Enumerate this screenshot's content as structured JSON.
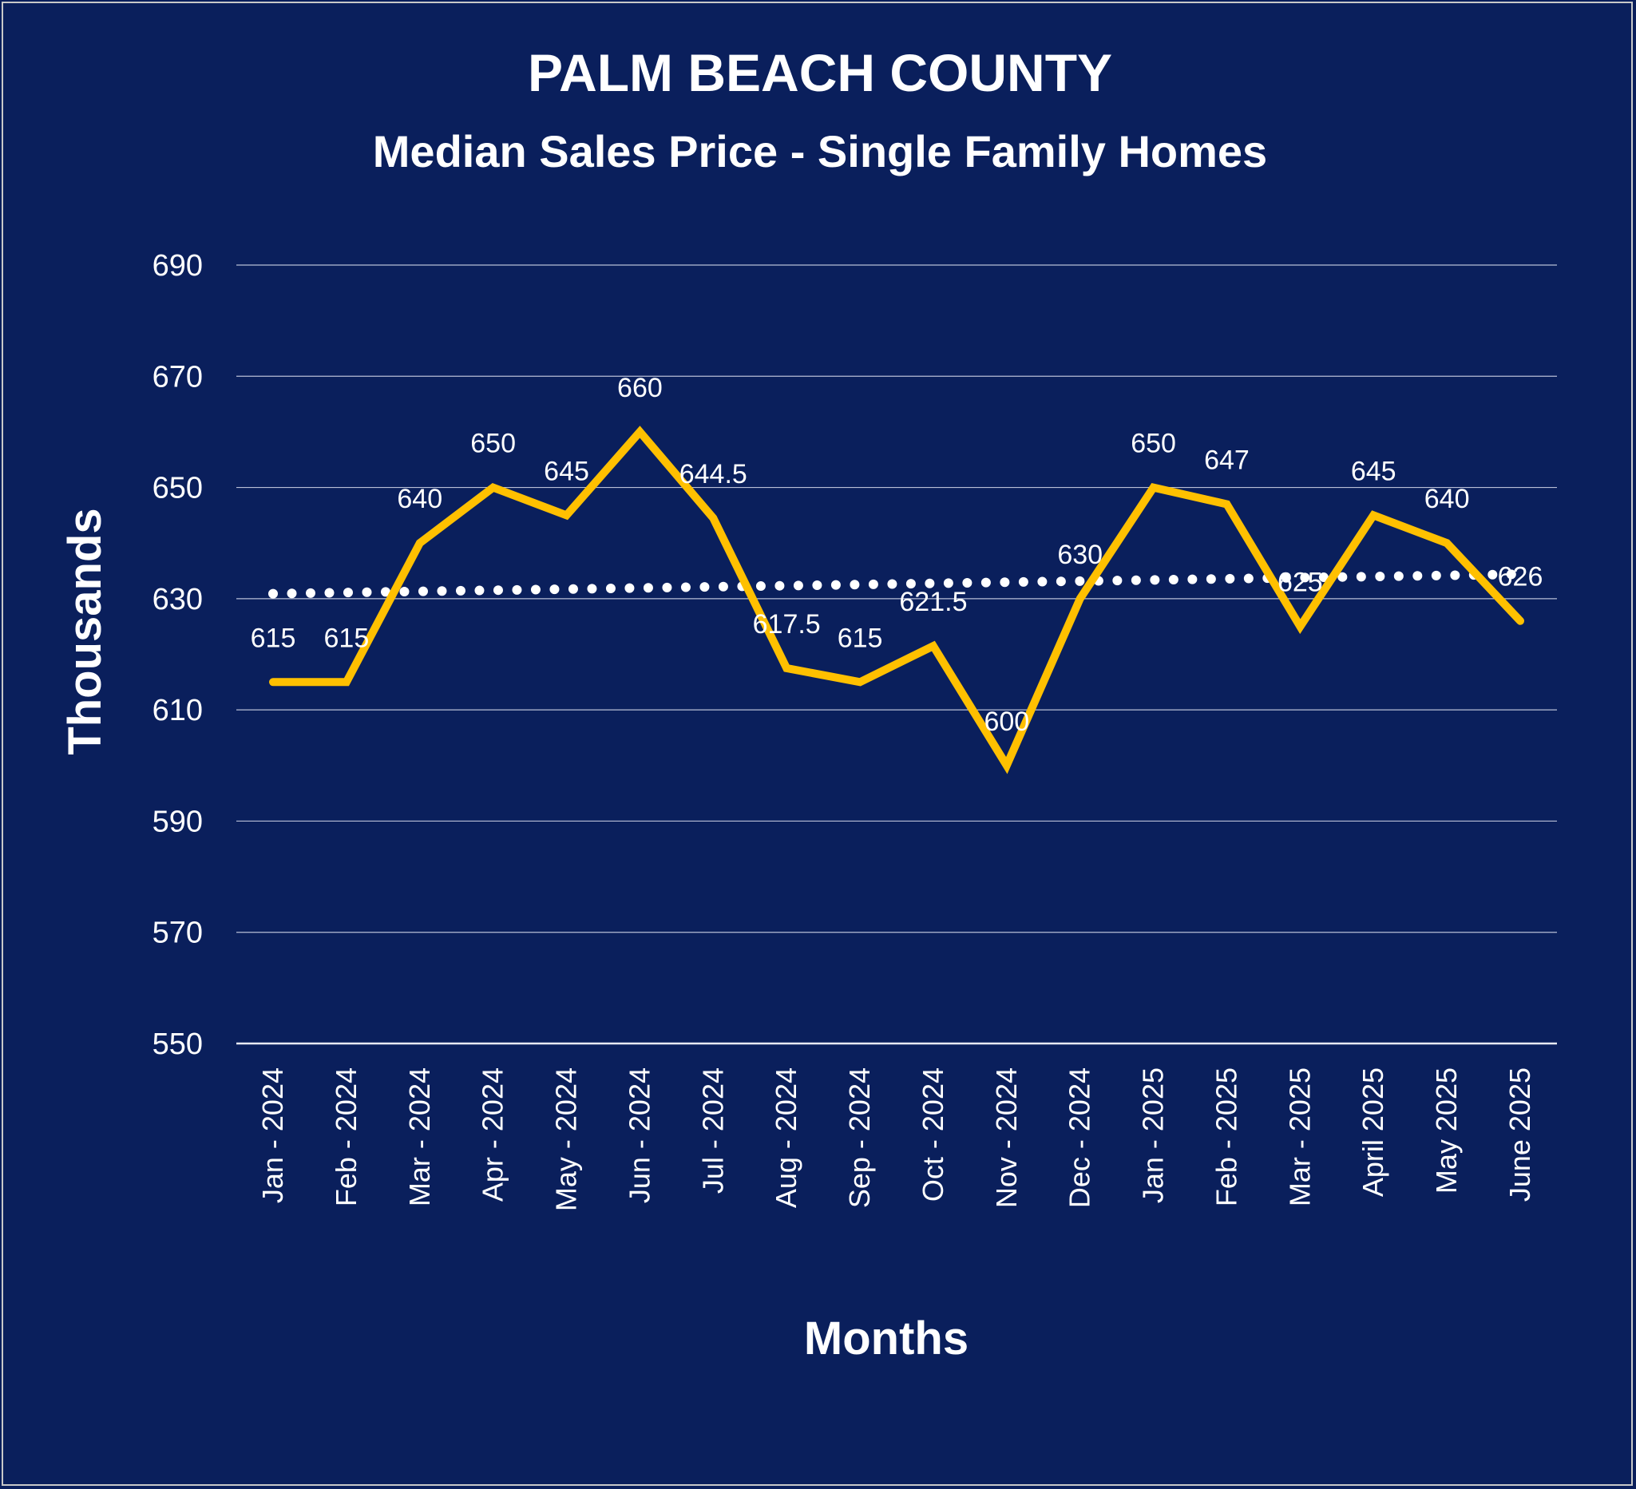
{
  "chart_data": {
    "type": "line",
    "title": "PALM BEACH COUNTY",
    "subtitle": "Median Sales Price - Single Family Homes",
    "xlabel": "Months",
    "ylabel": "Thousands",
    "ylim": [
      550,
      690
    ],
    "yticks": [
      550,
      570,
      590,
      610,
      630,
      650,
      670,
      690
    ],
    "grid": true,
    "categories": [
      "Jan - 2024",
      "Feb - 2024",
      "Mar - 2024",
      "Apr - 2024",
      "May - 2024",
      "Jun - 2024",
      "Jul - 2024",
      "Aug - 2024",
      "Sep - 2024",
      "Oct - 2024",
      "Nov - 2024",
      "Dec - 2024",
      "Jan - 2025",
      "Feb - 2025",
      "Mar - 2025",
      "April 2025",
      "May 2025",
      "June 2025"
    ],
    "series": [
      {
        "color": "#ffc000",
        "values": [
          615,
          615,
          640,
          650,
          645,
          660,
          644.5,
          617.5,
          615,
          621.5,
          600,
          630,
          650,
          647,
          625,
          645,
          640,
          626
        ],
        "data_labels": [
          "615",
          "615",
          "640",
          "650",
          "645",
          "660",
          "644.5",
          "617.5",
          "615",
          "621.5",
          "600",
          "630",
          "650",
          "647",
          "625",
          "645",
          "640",
          "626"
        ]
      },
      {
        "type": "linear-trendline",
        "color": "#ffffff",
        "style": "dotted",
        "start": 630.9,
        "end": 634.4
      }
    ],
    "colors": {
      "background": "#0a1f5c",
      "text": "#ffffff",
      "grid": "#b8bfd6"
    }
  }
}
